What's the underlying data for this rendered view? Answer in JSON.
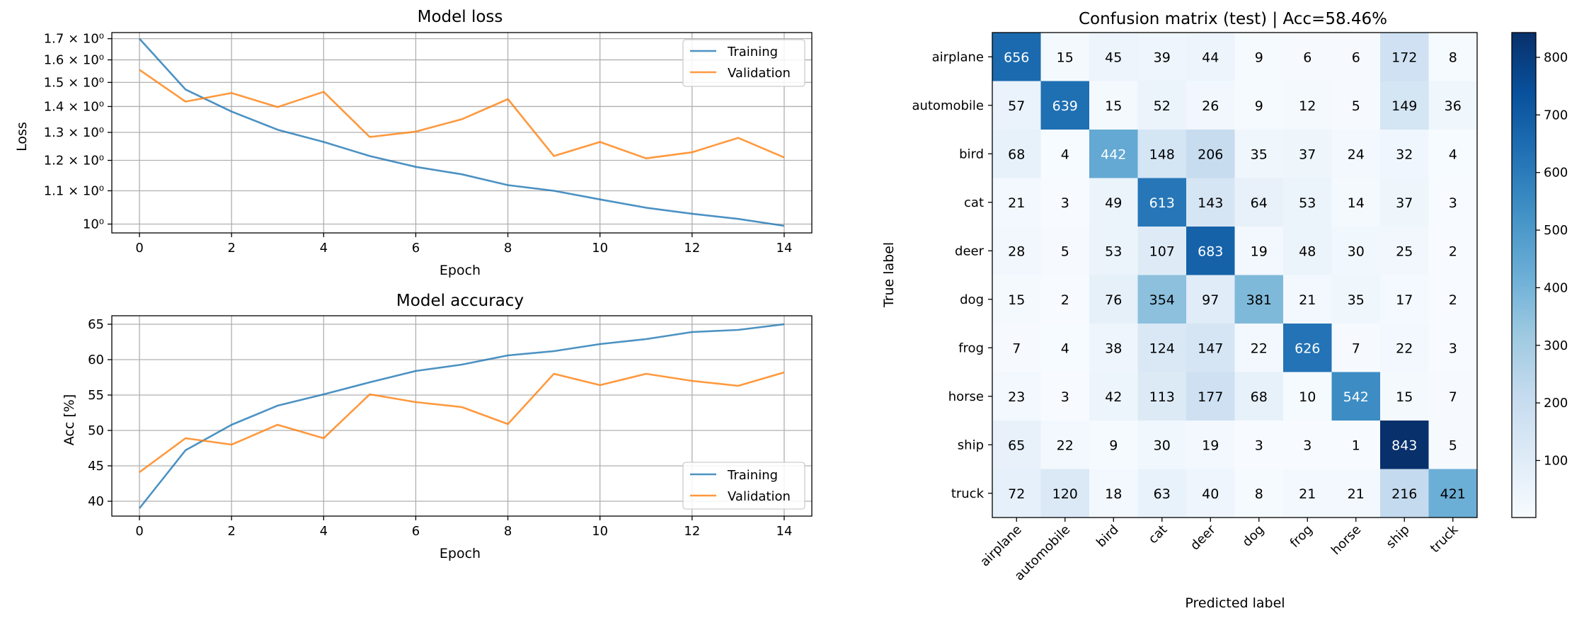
{
  "chart_data": [
    {
      "type": "line",
      "title": "Model loss",
      "xlabel": "Epoch",
      "ylabel": "Loss",
      "yscale": "log",
      "xlim": [
        -0.6,
        14.6
      ],
      "ylim": [
        0.975,
        1.73
      ],
      "grid": true,
      "legend_loc": "top-right",
      "x": [
        0,
        1,
        2,
        3,
        4,
        5,
        6,
        7,
        8,
        9,
        10,
        11,
        12,
        13,
        14
      ],
      "xticks": [
        0,
        2,
        4,
        6,
        8,
        10,
        12,
        14
      ],
      "yticks": [
        1.0,
        1.1,
        1.2,
        1.3,
        1.4,
        1.5,
        1.6,
        1.7
      ],
      "ytick_labels": [
        "10⁰",
        "1.1 × 10⁰",
        "1.2 × 10⁰",
        "1.3 × 10⁰",
        "1.4 × 10⁰",
        "1.5 × 10⁰",
        "1.6 × 10⁰",
        "1.7 × 10⁰"
      ],
      "series": [
        {
          "name": "Training",
          "color": "#1f77b4",
          "values": [
            1.7,
            1.47,
            1.38,
            1.31,
            1.265,
            1.215,
            1.178,
            1.153,
            1.118,
            1.1,
            1.073,
            1.048,
            1.03,
            1.015,
            0.995
          ]
        },
        {
          "name": "Validation",
          "color": "#ff7f0e",
          "values": [
            1.555,
            1.42,
            1.455,
            1.398,
            1.46,
            1.283,
            1.303,
            1.35,
            1.43,
            1.215,
            1.265,
            1.207,
            1.228,
            1.28,
            1.21
          ]
        }
      ]
    },
    {
      "type": "line",
      "title": "Model accuracy",
      "xlabel": "Epoch",
      "ylabel": "Acc [%]",
      "xlim": [
        -0.6,
        14.6
      ],
      "ylim": [
        37.9,
        66.2
      ],
      "grid": true,
      "legend_loc": "bottom-right",
      "x": [
        0,
        1,
        2,
        3,
        4,
        5,
        6,
        7,
        8,
        9,
        10,
        11,
        12,
        13,
        14
      ],
      "xticks": [
        0,
        2,
        4,
        6,
        8,
        10,
        12,
        14
      ],
      "yticks": [
        40,
        45,
        50,
        55,
        60,
        65
      ],
      "ytick_labels": [
        "40",
        "45",
        "50",
        "55",
        "60",
        "65"
      ],
      "series": [
        {
          "name": "Training",
          "color": "#1f77b4",
          "values": [
            39.0,
            47.2,
            50.8,
            53.5,
            55.1,
            56.8,
            58.4,
            59.3,
            60.6,
            61.2,
            62.2,
            62.9,
            63.9,
            64.2,
            65.0
          ]
        },
        {
          "name": "Validation",
          "color": "#ff7f0e",
          "values": [
            44.1,
            48.9,
            48.0,
            50.8,
            48.9,
            55.1,
            54.0,
            53.3,
            50.9,
            58.0,
            56.4,
            58.0,
            57.0,
            56.3,
            58.2
          ]
        }
      ]
    },
    {
      "type": "heatmap",
      "title": "Confusion matrix (test) | Acc=58.46%",
      "xlabel": "Predicted label",
      "ylabel": "True label",
      "categories": [
        "airplane",
        "automobile",
        "bird",
        "cat",
        "deer",
        "dog",
        "frog",
        "horse",
        "ship",
        "truck"
      ],
      "values": [
        [
          656,
          15,
          45,
          39,
          44,
          9,
          6,
          6,
          172,
          8
        ],
        [
          57,
          639,
          15,
          52,
          26,
          9,
          12,
          5,
          149,
          36
        ],
        [
          68,
          4,
          442,
          148,
          206,
          35,
          37,
          24,
          32,
          4
        ],
        [
          21,
          3,
          49,
          613,
          143,
          64,
          53,
          14,
          37,
          3
        ],
        [
          28,
          5,
          53,
          107,
          683,
          19,
          48,
          30,
          25,
          2
        ],
        [
          15,
          2,
          76,
          354,
          97,
          381,
          21,
          35,
          17,
          2
        ],
        [
          7,
          4,
          38,
          124,
          147,
          22,
          626,
          7,
          22,
          3
        ],
        [
          23,
          3,
          42,
          113,
          177,
          68,
          10,
          542,
          15,
          7
        ],
        [
          65,
          22,
          9,
          30,
          19,
          3,
          3,
          1,
          843,
          5
        ],
        [
          72,
          120,
          18,
          63,
          40,
          8,
          21,
          21,
          216,
          421
        ]
      ],
      "colormap": "Blues",
      "vmin": 1,
      "vmax": 843,
      "colorbar_ticks": [
        100,
        200,
        300,
        400,
        500,
        600,
        700,
        800
      ],
      "colorbar_tick_labels": [
        "100",
        "200",
        "300",
        "400",
        "500",
        "600",
        "700",
        "800"
      ]
    }
  ]
}
